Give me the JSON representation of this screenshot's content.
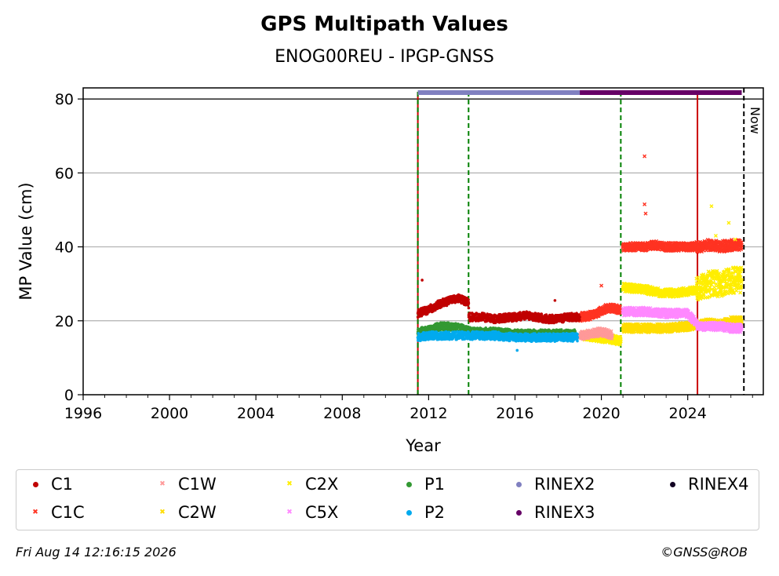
{
  "chart_data": {
    "type": "scatter",
    "title": "GPS Multipath Values",
    "subtitle": "ENOG00REU - IPGP-GNSS",
    "xlabel": "Year",
    "ylabel": "MP Value (cm)",
    "xlim": [
      1996,
      2027.5
    ],
    "ylim": [
      0,
      83
    ],
    "x_ticks": [
      "1996",
      "2000",
      "2004",
      "2008",
      "2012",
      "2016",
      "2020",
      "2024"
    ],
    "x_tick_values": [
      1996,
      2000,
      2004,
      2008,
      2012,
      2016,
      2020,
      2024
    ],
    "y_ticks": [
      "0",
      "20",
      "40",
      "60",
      "80"
    ],
    "y_tick_values": [
      0,
      20,
      40,
      60,
      80
    ],
    "grid": "horizontal",
    "reference_line_y": 80,
    "now_label": "Now",
    "now_x": 2026.6,
    "vertical_lines": [
      {
        "x": 2011.5,
        "color": "#cc0000",
        "style": "solid"
      },
      {
        "x": 2011.5,
        "color": "#008000",
        "style": "dashed"
      },
      {
        "x": 2013.85,
        "color": "#008000",
        "style": "dashed"
      },
      {
        "x": 2020.9,
        "color": "#008000",
        "style": "dashed"
      },
      {
        "x": 2024.45,
        "color": "#cc0000",
        "style": "solid"
      }
    ],
    "rinex_bars": [
      {
        "name": "RINEX2",
        "start": 2011.5,
        "end": 2019.0,
        "color": "#8080c0"
      },
      {
        "name": "RINEX3",
        "start": 2019.0,
        "end": 2026.5,
        "color": "#660066"
      }
    ],
    "series": [
      {
        "name": "C1",
        "marker": "dot",
        "color": "#c00000",
        "points": [
          [
            2011.5,
            22
          ],
          [
            2012.0,
            23
          ],
          [
            2012.5,
            24.5
          ],
          [
            2013.0,
            25.5
          ],
          [
            2013.4,
            26
          ],
          [
            2013.85,
            25
          ],
          [
            2013.86,
            21
          ],
          [
            2014.5,
            21
          ],
          [
            2015.0,
            20.5
          ],
          [
            2016.0,
            21
          ],
          [
            2016.5,
            21.5
          ],
          [
            2017.0,
            21
          ],
          [
            2017.5,
            20.5
          ],
          [
            2018.0,
            20.5
          ],
          [
            2018.5,
            21
          ],
          [
            2019.0,
            21
          ]
        ]
      },
      {
        "name": "C1C",
        "marker": "x",
        "color": "#ff3322",
        "points": [
          [
            2019.0,
            21
          ],
          [
            2019.6,
            21.5
          ],
          [
            2020.3,
            23.5
          ],
          [
            2020.9,
            23
          ],
          [
            2021.0,
            40
          ],
          [
            2022.0,
            40
          ],
          [
            2022.5,
            40.5
          ],
          [
            2023.0,
            40
          ],
          [
            2024.0,
            40
          ],
          [
            2024.5,
            40
          ],
          [
            2025.0,
            40.5
          ],
          [
            2025.5,
            40
          ],
          [
            2026.0,
            40.5
          ],
          [
            2026.5,
            40.5
          ]
        ]
      },
      {
        "name": "C1W",
        "marker": "x",
        "color": "#ff9999",
        "points": [
          [
            2019.0,
            16
          ],
          [
            2019.5,
            16.5
          ],
          [
            2020.0,
            17
          ],
          [
            2020.5,
            16
          ]
        ]
      },
      {
        "name": "C2W",
        "marker": "x",
        "color": "#ffdd00",
        "points": [
          [
            2021.0,
            18
          ],
          [
            2022.0,
            18
          ],
          [
            2023.0,
            18
          ],
          [
            2024.0,
            18.5
          ],
          [
            2024.5,
            19
          ],
          [
            2025.0,
            19.5
          ],
          [
            2025.5,
            19
          ],
          [
            2026.0,
            20
          ],
          [
            2026.5,
            20
          ]
        ]
      },
      {
        "name": "C2X",
        "marker": "x",
        "color": "#ffee00",
        "points": [
          [
            2019.2,
            16
          ],
          [
            2019.8,
            15.5
          ],
          [
            2020.5,
            15
          ],
          [
            2020.9,
            14.5
          ],
          [
            2021.0,
            29
          ],
          [
            2022.0,
            28.5
          ],
          [
            2022.8,
            27.5
          ],
          [
            2023.5,
            27.5
          ],
          [
            2024.0,
            28
          ],
          [
            2024.5,
            28.5
          ],
          [
            2025.0,
            30
          ],
          [
            2025.5,
            30
          ],
          [
            2026.0,
            31
          ],
          [
            2026.5,
            31
          ]
        ]
      },
      {
        "name": "C5X",
        "marker": "x",
        "color": "#ff88ff",
        "points": [
          [
            2021.0,
            22.5
          ],
          [
            2022.0,
            22.5
          ],
          [
            2023.0,
            22
          ],
          [
            2024.0,
            22
          ],
          [
            2024.5,
            18.5
          ],
          [
            2025.0,
            18.5
          ],
          [
            2025.5,
            18.5
          ],
          [
            2026.0,
            18
          ],
          [
            2026.5,
            18
          ]
        ]
      },
      {
        "name": "P1",
        "marker": "dot",
        "color": "#339933",
        "points": [
          [
            2011.5,
            17
          ],
          [
            2012.0,
            17.5
          ],
          [
            2012.5,
            18.5
          ],
          [
            2013.0,
            18.5
          ],
          [
            2013.5,
            18
          ],
          [
            2014.0,
            17
          ],
          [
            2014.5,
            17
          ],
          [
            2015.0,
            17
          ],
          [
            2016.0,
            16.5
          ],
          [
            2017.0,
            16.5
          ],
          [
            2018.0,
            16.5
          ],
          [
            2018.8,
            16.5
          ]
        ]
      },
      {
        "name": "P2",
        "marker": "dot",
        "color": "#00aaee",
        "points": [
          [
            2011.5,
            15.5
          ],
          [
            2012.0,
            16
          ],
          [
            2012.5,
            16
          ],
          [
            2013.0,
            16
          ],
          [
            2013.5,
            16
          ],
          [
            2014.0,
            16
          ],
          [
            2014.5,
            16
          ],
          [
            2015.0,
            16
          ],
          [
            2016.0,
            15.5
          ],
          [
            2017.0,
            15.5
          ],
          [
            2018.0,
            15.5
          ],
          [
            2018.9,
            15.5
          ]
        ]
      }
    ],
    "spikes": [
      {
        "series": "C1",
        "x": 2011.7,
        "y": 31
      },
      {
        "series": "C1C",
        "x": 2022.0,
        "y": 64.5
      },
      {
        "series": "C1C",
        "x": 2022.0,
        "y": 51.5
      },
      {
        "series": "C1C",
        "x": 2022.05,
        "y": 49
      },
      {
        "series": "C1C",
        "x": 2020.0,
        "y": 29.5
      },
      {
        "series": "C2X",
        "x": 2025.1,
        "y": 51
      },
      {
        "series": "C2X",
        "x": 2025.9,
        "y": 46.5
      },
      {
        "series": "C2X",
        "x": 2025.3,
        "y": 43
      },
      {
        "series": "C2X",
        "x": 2026.2,
        "y": 42
      },
      {
        "series": "P2",
        "x": 2016.1,
        "y": 12
      },
      {
        "series": "C1",
        "x": 2017.85,
        "y": 25.5
      }
    ]
  },
  "legend": [
    {
      "label": "C1",
      "color": "#c00000",
      "marker": "dot"
    },
    {
      "label": "C1W",
      "color": "#ff9999",
      "marker": "x"
    },
    {
      "label": "C2X",
      "color": "#ffee00",
      "marker": "x"
    },
    {
      "label": "P1",
      "color": "#339933",
      "marker": "dot"
    },
    {
      "label": "RINEX2",
      "color": "#8080c0",
      "marker": "dot"
    },
    {
      "label": "RINEX4",
      "color": "#110022",
      "marker": "dot"
    },
    {
      "label": "C1C",
      "color": "#ff3322",
      "marker": "x"
    },
    {
      "label": "C2W",
      "color": "#ffdd00",
      "marker": "x"
    },
    {
      "label": "C5X",
      "color": "#ff88ff",
      "marker": "x"
    },
    {
      "label": "P2",
      "color": "#00aaee",
      "marker": "dot"
    },
    {
      "label": "RINEX3",
      "color": "#660066",
      "marker": "dot"
    }
  ],
  "footer": {
    "timestamp": "Fri Aug 14 12:16:15 2026",
    "copyright": "©GNSS@ROB"
  }
}
